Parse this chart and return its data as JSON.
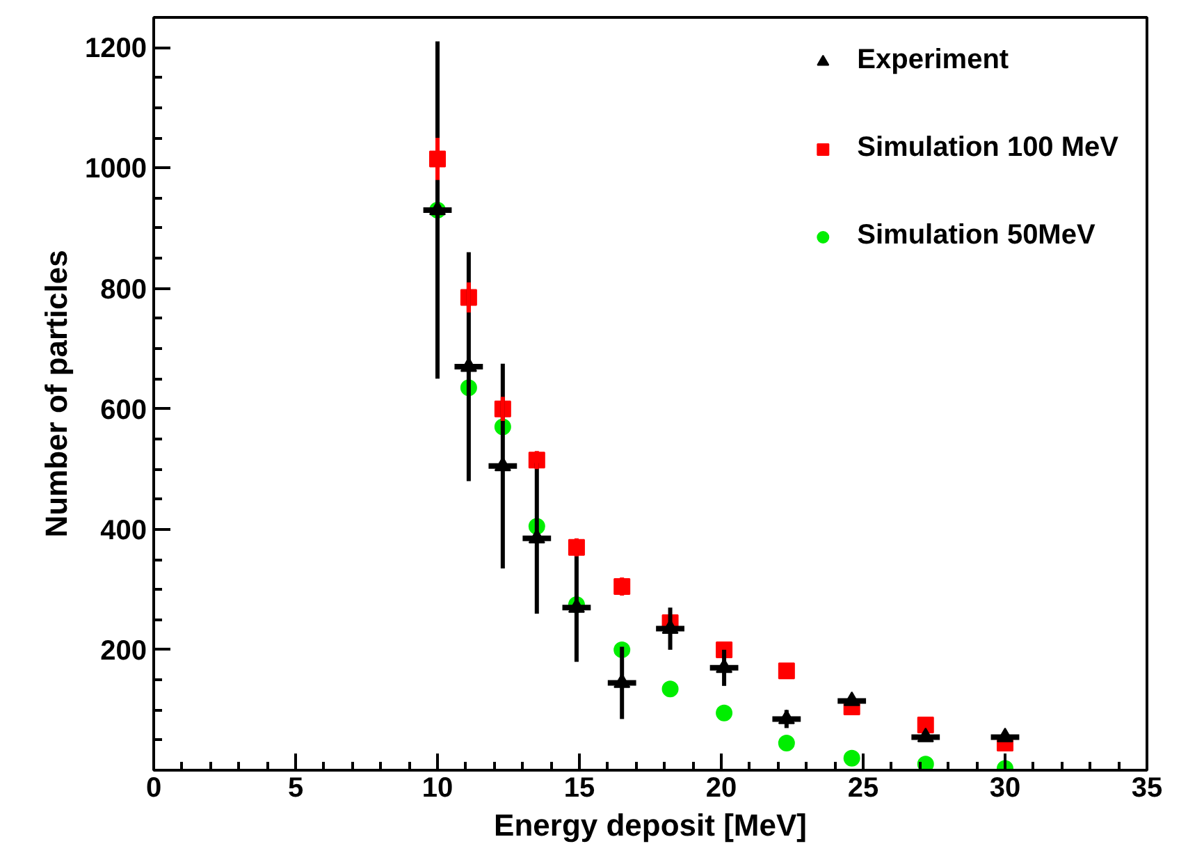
{
  "chart_data": {
    "type": "scatter",
    "xlabel": "Energy deposit [MeV]",
    "ylabel": "Number of particles",
    "x": [
      10.0,
      11.1,
      12.3,
      13.5,
      14.9,
      16.5,
      18.2,
      20.1,
      22.3,
      24.6,
      27.2,
      30.0
    ],
    "xlim": [
      0,
      35
    ],
    "xticks": [
      0,
      5,
      10,
      15,
      20,
      25,
      30,
      35
    ],
    "ylim": [
      0,
      1250
    ],
    "yticks": [
      200,
      400,
      600,
      800,
      1000,
      1200
    ],
    "grid": false,
    "legend": "top right",
    "series": [
      {
        "name": "Experiment",
        "color": "#000000",
        "marker": "triangle",
        "values": [
          930,
          670,
          505,
          385,
          270,
          145,
          235,
          170,
          85,
          115,
          55,
          55
        ],
        "errors": [
          280,
          190,
          170,
          125,
          90,
          60,
          35,
          30,
          15,
          null,
          null,
          null
        ],
        "xerrors": [
          0.5,
          0.5,
          0.5,
          0.5,
          0.5,
          0.5,
          0.5,
          0.5,
          0.5,
          0.5,
          0.5,
          0.5
        ]
      },
      {
        "name": "Simulation 100 MeV",
        "color": "#ff0000",
        "marker": "square",
        "values": [
          1015,
          785,
          600,
          515,
          370,
          305,
          245,
          200,
          165,
          105,
          75,
          45
        ],
        "errors": [
          35,
          25,
          20,
          15,
          15,
          15,
          null,
          null,
          null,
          null,
          null,
          null
        ]
      },
      {
        "name": "Simulation 50MeV",
        "color": "#00ee00",
        "marker": "circle",
        "values": [
          930,
          635,
          570,
          405,
          275,
          200,
          135,
          95,
          45,
          20,
          10,
          3
        ]
      }
    ]
  }
}
